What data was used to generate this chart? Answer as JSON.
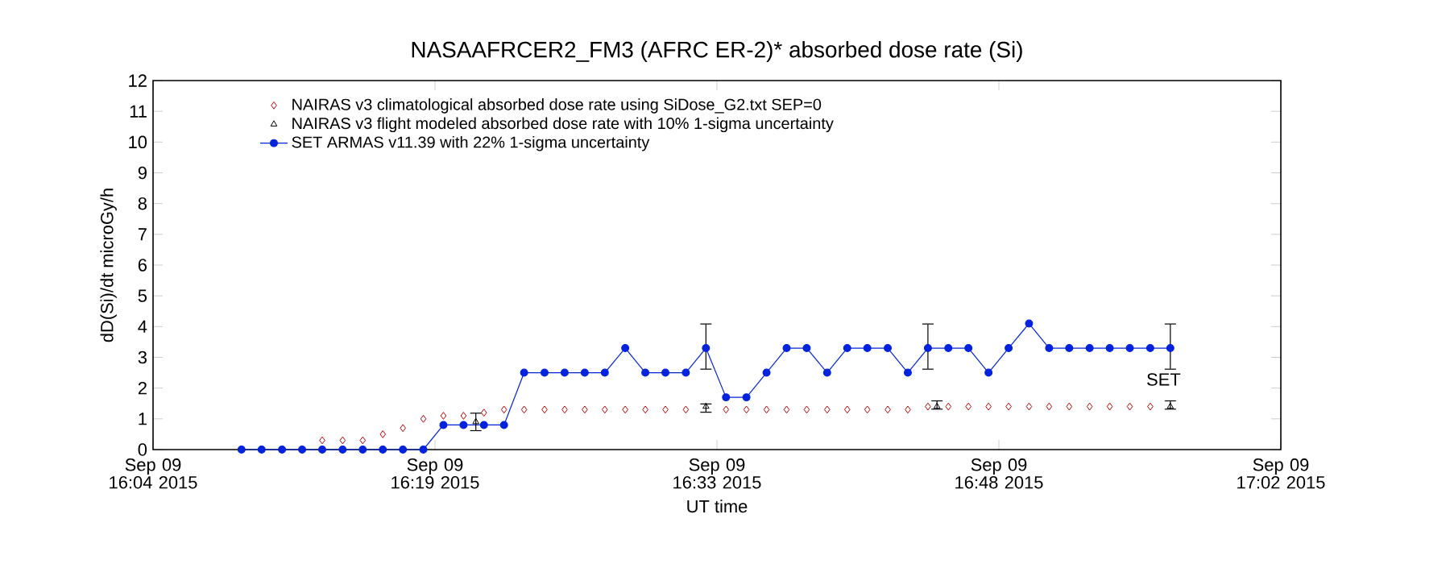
{
  "chart_data": {
    "type": "scatter",
    "title": "NASAAFRCER2_FM3 (AFRC ER-2)* absorbed dose rate (Si)",
    "xlabel": "UT time",
    "ylabel": "dD(Si)/dt microGy/h",
    "xlim": [
      "2015-09-09T16:04",
      "2015-09-09T17:02"
    ],
    "xticks": [
      {
        "value": "2015-09-09T16:04",
        "label": "Sep 09 16:04 2015"
      },
      {
        "value": "2015-09-09T16:18:30",
        "label": "Sep 09 16:19 2015"
      },
      {
        "value": "2015-09-09T16:33",
        "label": "Sep 09 16:33 2015"
      },
      {
        "value": "2015-09-09T16:47:30",
        "label": "Sep 09 16:48 2015"
      },
      {
        "value": "2015-09-09T17:02",
        "label": "Sep 09 17:02 2015"
      }
    ],
    "ylim": [
      0,
      12
    ],
    "yticks": [
      0,
      1,
      2,
      3,
      4,
      5,
      6,
      7,
      8,
      9,
      10,
      11,
      12
    ],
    "legend": "top left",
    "series": [
      {
        "name": "NAIRAS v3 climatological absorbed dose rate using SiDose_G2.txt SEP=0",
        "marker": "diamond",
        "color": "#c00000",
        "x": [
          "2015-09-09T16:12:42",
          "2015-09-09T16:13:45",
          "2015-09-09T16:14:47",
          "2015-09-09T16:15:49",
          "2015-09-09T16:16:51",
          "2015-09-09T16:17:54",
          "2015-09-09T16:18:56",
          "2015-09-09T16:19:58",
          "2015-09-09T16:21:01",
          "2015-09-09T16:22:03",
          "2015-09-09T16:23:05",
          "2015-09-09T16:24:08",
          "2015-09-09T16:25:10",
          "2015-09-09T16:26:12",
          "2015-09-09T16:27:14",
          "2015-09-09T16:28:17",
          "2015-09-09T16:29:19",
          "2015-09-09T16:30:21",
          "2015-09-09T16:31:24",
          "2015-09-09T16:33:28",
          "2015-09-09T16:34:31",
          "2015-09-09T16:35:33",
          "2015-09-09T16:36:35",
          "2015-09-09T16:37:37",
          "2015-09-09T16:38:40",
          "2015-09-09T16:39:42",
          "2015-09-09T16:40:44",
          "2015-09-09T16:41:47",
          "2015-09-09T16:42:49",
          "2015-09-09T16:43:51",
          "2015-09-09T16:44:54",
          "2015-09-09T16:45:56",
          "2015-09-09T16:46:58",
          "2015-09-09T16:48:00",
          "2015-09-09T16:49:03",
          "2015-09-09T16:50:05",
          "2015-09-09T16:51:07",
          "2015-09-09T16:52:10",
          "2015-09-09T16:53:12",
          "2015-09-09T16:54:14",
          "2015-09-09T16:55:17"
        ],
        "values": [
          0.3,
          0.3,
          0.3,
          0.5,
          0.7,
          1.0,
          1.1,
          1.1,
          1.2,
          1.3,
          1.3,
          1.3,
          1.3,
          1.3,
          1.3,
          1.3,
          1.3,
          1.3,
          1.3,
          1.3,
          1.3,
          1.3,
          1.3,
          1.3,
          1.3,
          1.3,
          1.3,
          1.3,
          1.3,
          1.4,
          1.4,
          1.4,
          1.4,
          1.4,
          1.4,
          1.4,
          1.4,
          1.4,
          1.4,
          1.4,
          1.4
        ]
      },
      {
        "name": "NAIRAS v3 flight modeled absorbed dose rate with 10% 1-sigma uncertainty",
        "marker": "triangle",
        "color": "#000000",
        "x": [
          "2015-09-09T16:20:36",
          "2015-09-09T16:32:26",
          "2015-09-09T16:44:19",
          "2015-09-09T16:56:19"
        ],
        "values": [
          0.9,
          1.4,
          1.4,
          1.4
        ],
        "errors": [
          [
            0.6,
            1.2
          ],
          [
            1.2,
            1.5
          ],
          [
            1.3,
            1.6
          ],
          [
            1.3,
            1.6
          ]
        ]
      },
      {
        "name": "SET ARMAS v11.39 with 22% 1-sigma uncertainty",
        "type": "line",
        "marker": "circle",
        "line_style": "solid",
        "color": "#0022dd",
        "x": [
          "2015-09-09T16:08:33",
          "2015-09-09T16:09:35",
          "2015-09-09T16:10:38",
          "2015-09-09T16:11:40",
          "2015-09-09T16:12:42",
          "2015-09-09T16:13:45",
          "2015-09-09T16:14:47",
          "2015-09-09T16:15:49",
          "2015-09-09T16:16:51",
          "2015-09-09T16:17:54",
          "2015-09-09T16:18:56",
          "2015-09-09T16:19:58",
          "2015-09-09T16:21:01",
          "2015-09-09T16:22:03",
          "2015-09-09T16:23:05",
          "2015-09-09T16:24:08",
          "2015-09-09T16:25:10",
          "2015-09-09T16:26:12",
          "2015-09-09T16:27:14",
          "2015-09-09T16:28:17",
          "2015-09-09T16:29:19",
          "2015-09-09T16:30:21",
          "2015-09-09T16:31:24",
          "2015-09-09T16:32:26",
          "2015-09-09T16:33:28",
          "2015-09-09T16:34:31",
          "2015-09-09T16:35:33",
          "2015-09-09T16:36:35",
          "2015-09-09T16:37:37",
          "2015-09-09T16:38:40",
          "2015-09-09T16:39:42",
          "2015-09-09T16:40:44",
          "2015-09-09T16:41:47",
          "2015-09-09T16:42:49",
          "2015-09-09T16:43:51",
          "2015-09-09T16:44:54",
          "2015-09-09T16:45:56",
          "2015-09-09T16:46:58",
          "2015-09-09T16:48:00",
          "2015-09-09T16:49:03",
          "2015-09-09T16:50:05",
          "2015-09-09T16:51:07",
          "2015-09-09T16:52:10",
          "2015-09-09T16:53:12",
          "2015-09-09T16:54:14",
          "2015-09-09T16:55:17",
          "2015-09-09T16:56:19"
        ],
        "values": [
          0,
          0,
          0,
          0,
          0,
          0,
          0,
          0,
          0,
          0,
          0.8,
          0.8,
          0.8,
          0.8,
          2.5,
          2.5,
          2.5,
          2.5,
          2.5,
          3.3,
          2.5,
          2.5,
          2.5,
          3.3,
          1.7,
          1.7,
          2.5,
          3.3,
          3.3,
          2.5,
          3.3,
          3.3,
          3.3,
          2.5,
          3.3,
          3.3,
          3.3,
          2.5,
          3.3,
          4.1,
          3.3,
          3.3,
          3.3,
          3.3,
          3.3,
          3.3,
          3.3
        ],
        "errors": [
          null,
          null,
          null,
          null,
          null,
          null,
          null,
          null,
          null,
          null,
          null,
          null,
          null,
          null,
          null,
          null,
          null,
          null,
          null,
          null,
          null,
          null,
          null,
          [
            2.6,
            4.1
          ],
          null,
          null,
          null,
          null,
          null,
          null,
          null,
          null,
          null,
          null,
          [
            2.6,
            4.1
          ],
          null,
          null,
          null,
          null,
          null,
          null,
          null,
          null,
          null,
          null,
          null,
          [
            2.6,
            4.1
          ]
        ]
      }
    ],
    "annotations": [
      "SET"
    ]
  }
}
